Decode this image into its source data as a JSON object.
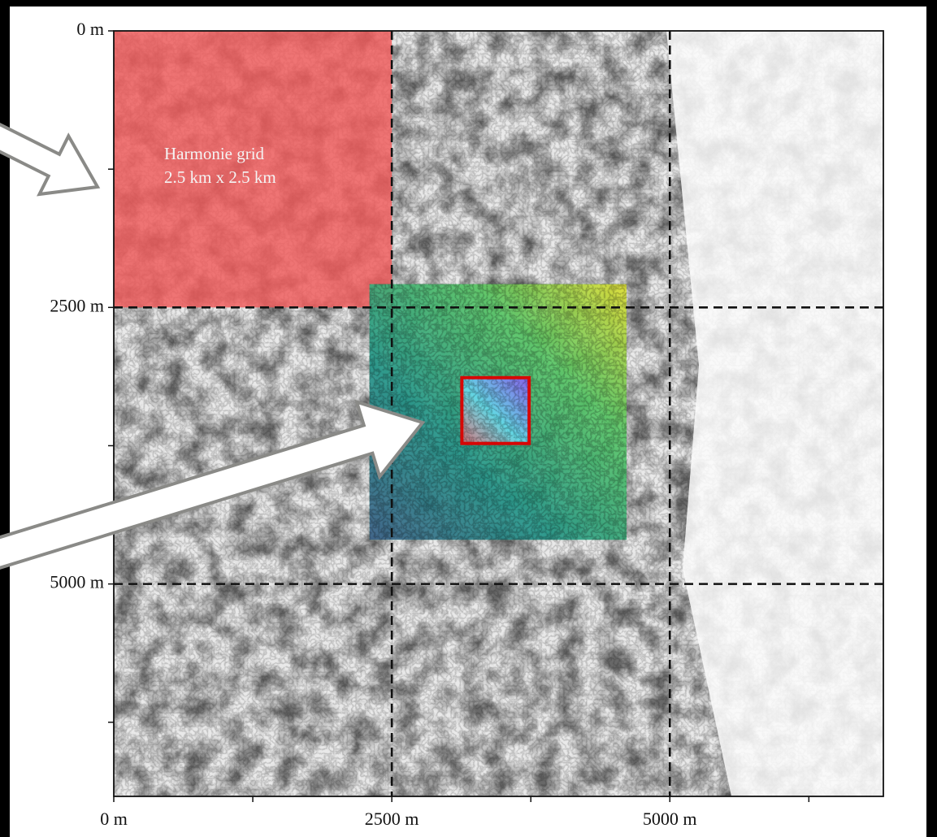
{
  "axes": {
    "xlim": [
      0,
      6920
    ],
    "ylim": [
      6920,
      0
    ],
    "xticks": [
      {
        "value": 0,
        "label": "0 m"
      },
      {
        "value": 2500,
        "label": "2500 m"
      },
      {
        "value": 5000,
        "label": "5000 m"
      }
    ],
    "yticks": [
      {
        "value": 0,
        "label": "0 m"
      },
      {
        "value": 2500,
        "label": "2500 m"
      },
      {
        "value": 5000,
        "label": "5000 m"
      }
    ],
    "minor_ticks": [
      1250,
      3750,
      6250
    ],
    "grid": "dashed"
  },
  "domains": [
    {
      "x": [
        0,
        2500
      ],
      "y": [
        0,
        2500
      ],
      "color": "#f05a5a",
      "opacity": 0.82
    },
    {
      "x": [
        2300,
        4610
      ],
      "y": [
        2290,
        4600
      ],
      "color": "#35b779",
      "opacity": 0.92
    },
    {
      "x": [
        3130,
        3735
      ],
      "y": [
        3135,
        3730
      ],
      "color": "#8ab8f2",
      "opacity": 0.95,
      "edge": "#e00000"
    }
  ],
  "annotation": {
    "line1": "Harmonie grid",
    "line2": "2.5 km x 2.5 km"
  }
}
